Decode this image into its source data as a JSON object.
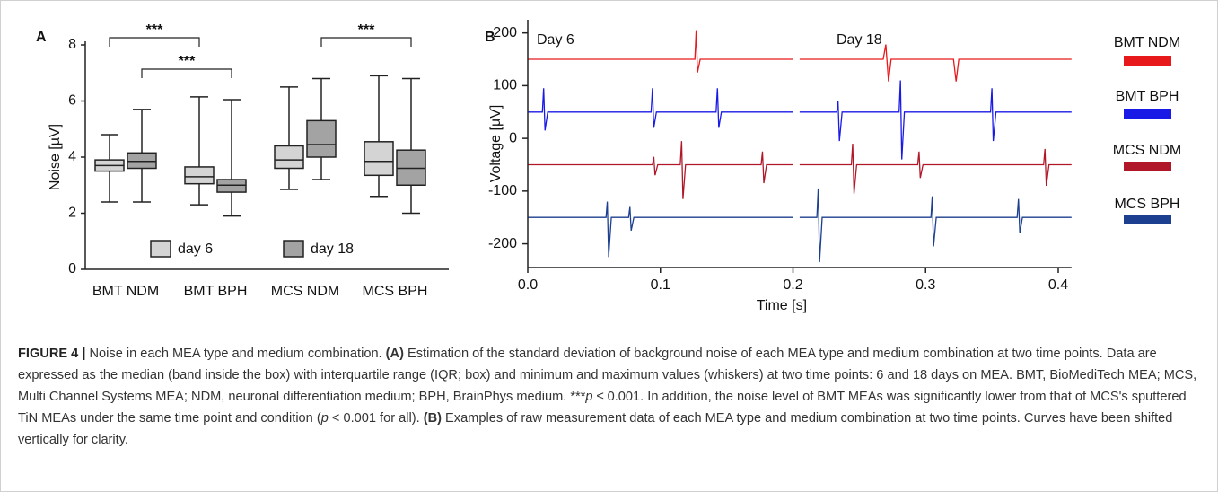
{
  "chart_data": [
    {
      "type": "box",
      "panel": "A",
      "ylabel": "Noise [µV]",
      "categories": [
        "BMT NDM",
        "BMT BPH",
        "MCS NDM",
        "MCS BPH"
      ],
      "ylim": [
        0,
        8
      ],
      "yticks": [
        0,
        2,
        4,
        6,
        8
      ],
      "legend": "lower center",
      "series": [
        {
          "name": "day 6",
          "color": "#d4d4d4",
          "min": [
            2.4,
            2.3,
            2.85,
            2.6
          ],
          "q1": [
            3.5,
            3.05,
            3.6,
            3.35
          ],
          "median": [
            3.7,
            3.3,
            3.9,
            3.85
          ],
          "q3": [
            3.9,
            3.65,
            4.4,
            4.55
          ],
          "max": [
            4.8,
            6.15,
            6.5,
            6.9
          ]
        },
        {
          "name": "day 18",
          "color": "#a3a3a3",
          "min": [
            2.4,
            1.9,
            3.2,
            2.0
          ],
          "q1": [
            3.6,
            2.75,
            4.0,
            3.0
          ],
          "median": [
            3.85,
            3.0,
            4.45,
            3.6
          ],
          "q3": [
            4.15,
            3.2,
            5.3,
            4.25
          ],
          "max": [
            5.7,
            6.05,
            6.8,
            6.8
          ]
        }
      ],
      "annotations": [
        "***",
        "***",
        "***"
      ]
    },
    {
      "type": "line",
      "panel": "B",
      "xlabel": "Time [s]",
      "ylabel": "Voltage [µV]",
      "xlim": [
        0,
        0.41
      ],
      "ylim": [
        -245,
        225
      ],
      "xticks": [
        {
          "value": 0,
          "label": "0.0"
        },
        0.1,
        0.2,
        0.3,
        0.4
      ],
      "yticks": [
        -200,
        -100,
        0,
        100,
        200
      ],
      "legend": "right",
      "annotations": [
        "Day 6",
        "Day 18"
      ],
      "series": [
        {
          "name": "BMT NDM",
          "color": "#e8191b",
          "x": [
            0,
            0.126,
            0.127,
            0.128,
            0.13,
            0.2,
            0.202,
            0.205,
            0.268,
            0.27,
            0.272,
            0.274,
            0.321,
            0.323,
            0.325,
            0.41
          ],
          "values": [
            150,
            150,
            205,
            125,
            150,
            150,
            null,
            150,
            150,
            178,
            108,
            150,
            150,
            108,
            150,
            150
          ]
        },
        {
          "name": "BMT BPH",
          "color": "#1a1ae6",
          "x": [
            0,
            0.011,
            0.012,
            0.013,
            0.015,
            0.093,
            0.094,
            0.095,
            0.097,
            0.142,
            0.143,
            0.144,
            0.146,
            0.2,
            0.202,
            0.205,
            0.233,
            0.234,
            0.235,
            0.237,
            0.28,
            0.281,
            0.282,
            0.284,
            0.349,
            0.35,
            0.351,
            0.353,
            0.41
          ],
          "values": [
            50,
            50,
            95,
            15,
            50,
            50,
            95,
            20,
            50,
            50,
            95,
            20,
            50,
            50,
            null,
            50,
            50,
            70,
            -5,
            50,
            50,
            110,
            -40,
            50,
            50,
            95,
            -5,
            50,
            50
          ]
        },
        {
          "name": "MCS NDM",
          "color": "#b0182a",
          "x": [
            0,
            0.094,
            0.095,
            0.096,
            0.098,
            0.115,
            0.116,
            0.117,
            0.119,
            0.176,
            0.177,
            0.178,
            0.18,
            0.2,
            0.202,
            0.205,
            0.244,
            0.245,
            0.246,
            0.248,
            0.294,
            0.295,
            0.296,
            0.298,
            0.389,
            0.39,
            0.391,
            0.393,
            0.41
          ],
          "values": [
            -50,
            -50,
            -35,
            -70,
            -50,
            -50,
            -5,
            -115,
            -50,
            -50,
            -25,
            -85,
            -50,
            -50,
            null,
            -50,
            -50,
            -10,
            -105,
            -50,
            -50,
            -25,
            -75,
            -50,
            -50,
            -20,
            -90,
            -50,
            -50
          ]
        },
        {
          "name": "MCS BPH",
          "color": "#1c3f8f",
          "x": [
            0,
            0.059,
            0.06,
            0.061,
            0.063,
            0.076,
            0.077,
            0.078,
            0.08,
            0.2,
            0.202,
            0.205,
            0.218,
            0.219,
            0.22,
            0.222,
            0.304,
            0.305,
            0.306,
            0.308,
            0.369,
            0.37,
            0.371,
            0.373,
            0.41
          ],
          "values": [
            -150,
            -150,
            -120,
            -225,
            -150,
            -150,
            -130,
            -175,
            -150,
            -150,
            null,
            -150,
            -150,
            -95,
            -235,
            -150,
            -150,
            -110,
            -205,
            -150,
            -150,
            -115,
            -180,
            -150,
            -150
          ]
        }
      ]
    }
  ],
  "caption": {
    "label": "FIGURE 4 |",
    "segments": [
      "Noise in each MEA type and medium combination. ",
      "(A)",
      " Estimation of the standard deviation of background noise of each MEA type and medium combination at two time points. Data are expressed as the median (band inside the box) with interquartile range (IQR; box) and minimum and maximum values (whiskers) at two time points: 6 and 18 days on MEA. BMT, BioMediTech MEA; MCS, Multi Channel Systems MEA; NDM, neuronal differentiation medium; BPH, BrainPhys medium. ***",
      "p",
      " ≤ 0.001. In addition, the noise level of BMT MEAs was significantly lower from that of MCS's sputtered TiN MEAs under the same time point and condition (",
      "p",
      " < 0.001 for all). ",
      "(B)",
      " Examples of raw measurement data of each MEA type and medium combination at two time points. Curves have been shifted vertically for clarity."
    ]
  }
}
